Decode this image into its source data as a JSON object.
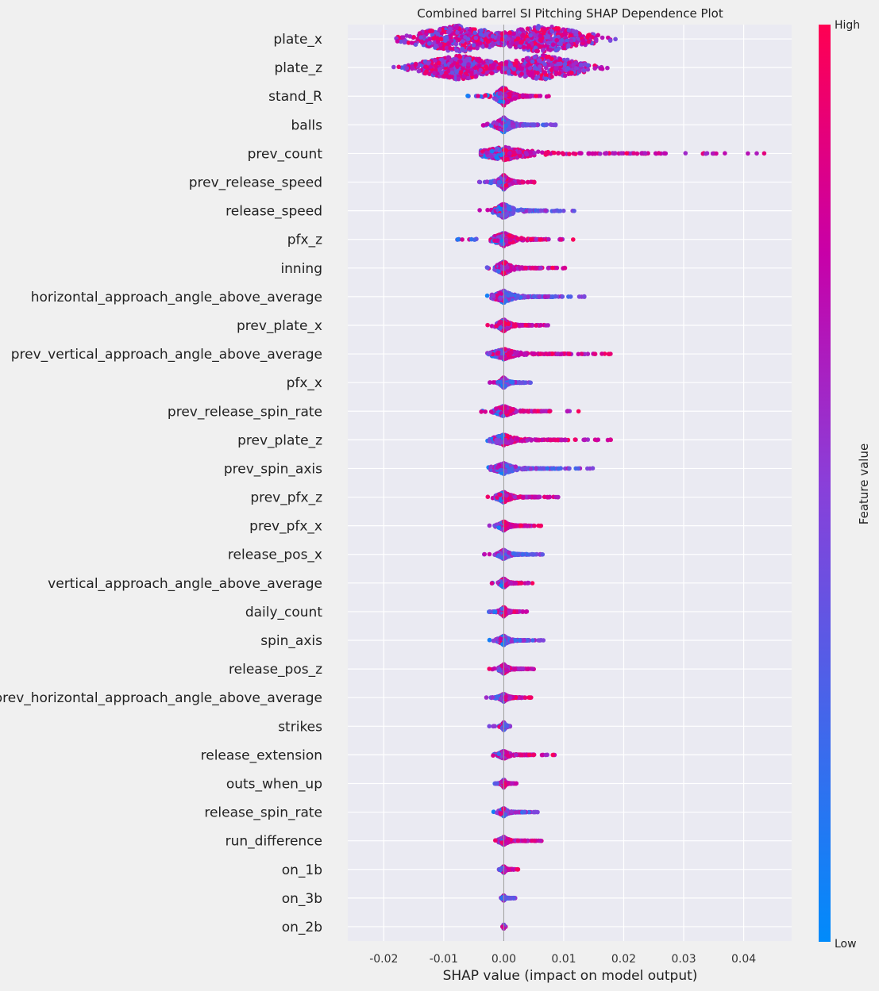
{
  "chart_data": {
    "type": "scatter",
    "subtype": "shap-beeswarm",
    "title": "Combined barrel SI Pitching SHAP Dependence Plot",
    "xlabel": "SHAP value (impact on model output)",
    "xlim": [
      -0.026,
      0.048
    ],
    "xticks": [
      "-0.02",
      "-0.01",
      "0.00",
      "0.01",
      "0.02",
      "0.03",
      "0.04"
    ],
    "xtick_values": [
      -0.02,
      -0.01,
      0.0,
      0.01,
      0.02,
      0.03,
      0.04
    ],
    "colorbar": {
      "label": "Feature value",
      "high": "High",
      "low": "Low",
      "high_color": "#ff0052",
      "low_color": "#008bfb"
    },
    "grid": true,
    "features": [
      {
        "name": "plate_x",
        "min": -0.0225,
        "max": 0.0222,
        "w": 1.0,
        "bimodal": true
      },
      {
        "name": "plate_z",
        "min": -0.02,
        "max": 0.0188,
        "w": 0.9,
        "bimodal": true
      },
      {
        "name": "stand_R",
        "min": -0.0062,
        "max": 0.0078,
        "w": 0.7
      },
      {
        "name": "balls",
        "min": -0.0045,
        "max": 0.0095,
        "w": 0.55
      },
      {
        "name": "prev_count",
        "min": -0.0038,
        "max": 0.045,
        "w": 0.5
      },
      {
        "name": "prev_release_speed",
        "min": -0.0042,
        "max": 0.0055,
        "w": 0.55
      },
      {
        "name": "release_speed",
        "min": -0.0045,
        "max": 0.0118,
        "w": 0.55
      },
      {
        "name": "pfx_z",
        "min": -0.0078,
        "max": 0.0122,
        "w": 0.5
      },
      {
        "name": "inning",
        "min": -0.003,
        "max": 0.0105,
        "w": 0.5
      },
      {
        "name": "horizontal_approach_angle_above_average",
        "min": -0.003,
        "max": 0.0145,
        "w": 0.45
      },
      {
        "name": "prev_plate_x",
        "min": -0.0028,
        "max": 0.008,
        "w": 0.45
      },
      {
        "name": "prev_vertical_approach_angle_above_average",
        "min": -0.003,
        "max": 0.0185,
        "w": 0.4
      },
      {
        "name": "pfx_x",
        "min": -0.0025,
        "max": 0.0045,
        "w": 0.4
      },
      {
        "name": "prev_release_spin_rate",
        "min": -0.0038,
        "max": 0.013,
        "w": 0.4
      },
      {
        "name": "prev_plate_z",
        "min": -0.0028,
        "max": 0.0183,
        "w": 0.4
      },
      {
        "name": "prev_spin_axis",
        "min": -0.0028,
        "max": 0.016,
        "w": 0.4
      },
      {
        "name": "prev_pfx_z",
        "min": -0.0028,
        "max": 0.0098,
        "w": 0.4
      },
      {
        "name": "prev_pfx_x",
        "min": -0.0025,
        "max": 0.0065,
        "w": 0.35
      },
      {
        "name": "release_pos_x",
        "min": -0.0035,
        "max": 0.0065,
        "w": 0.35
      },
      {
        "name": "vertical_approach_angle_above_average",
        "min": -0.002,
        "max": 0.005,
        "w": 0.35
      },
      {
        "name": "daily_count",
        "min": -0.0025,
        "max": 0.004,
        "w": 0.35
      },
      {
        "name": "spin_axis",
        "min": -0.0025,
        "max": 0.0068,
        "w": 0.35
      },
      {
        "name": "release_pos_z",
        "min": -0.0025,
        "max": 0.0055,
        "w": 0.35
      },
      {
        "name": "prev_horizontal_approach_angle_above_average",
        "min": -0.003,
        "max": 0.0048,
        "w": 0.3
      },
      {
        "name": "strikes",
        "min": -0.0025,
        "max": 0.0012,
        "w": 0.3
      },
      {
        "name": "release_extension",
        "min": -0.0018,
        "max": 0.0085,
        "w": 0.3
      },
      {
        "name": "outs_when_up",
        "min": -0.0015,
        "max": 0.0022,
        "w": 0.3
      },
      {
        "name": "release_spin_rate",
        "min": -0.0018,
        "max": 0.0058,
        "w": 0.3
      },
      {
        "name": "run_difference",
        "min": -0.0015,
        "max": 0.0068,
        "w": 0.3
      },
      {
        "name": "on_1b",
        "min": -0.0012,
        "max": 0.0025,
        "w": 0.25
      },
      {
        "name": "on_3b",
        "min": -0.0005,
        "max": 0.002,
        "w": 0.2
      },
      {
        "name": "on_2b",
        "min": -0.0002,
        "max": 0.0003,
        "w": 0.15
      }
    ]
  }
}
